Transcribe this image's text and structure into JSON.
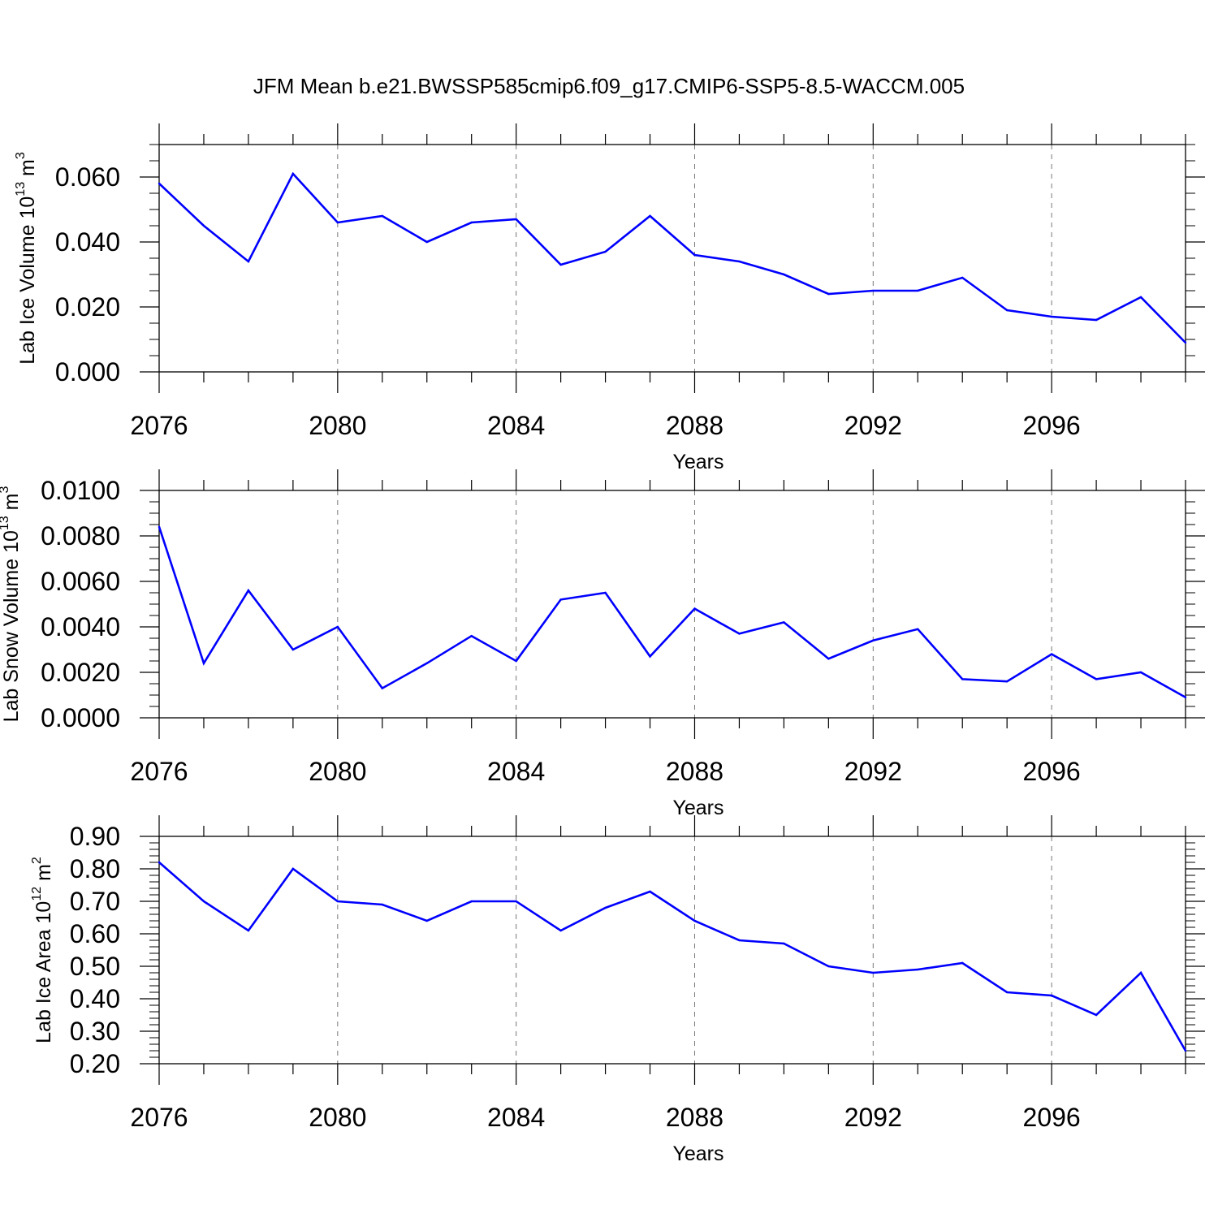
{
  "figure": {
    "title": "JFM Mean b.e21.BWSSP585cmip6.f09_g17.CMIP6-SSP5-8.5-WACCM.005"
  },
  "chart_data": [
    {
      "type": "line",
      "title": "",
      "xlabel": "Years",
      "ylabel": {
        "text": "Lab Ice Volume 10",
        "exp": "13",
        "unit": " m",
        "unit_exp": "3"
      },
      "xlim": [
        2076,
        2099
      ],
      "ylim": [
        0,
        0.07
      ],
      "x_ticks": [
        2076,
        2080,
        2084,
        2088,
        2092,
        2096
      ],
      "x_tick_labels": [
        "2076",
        "2080",
        "2084",
        "2088",
        "2092",
        "2096"
      ],
      "y_ticks": [
        0,
        0.02,
        0.04,
        0.06
      ],
      "y_tick_labels": [
        "0.000",
        "0.020",
        "0.040",
        "0.060"
      ],
      "y_minor_step": 0.005,
      "grid": "vertical dashed at major x ticks",
      "line_color": "#0000ff",
      "x": [
        2076,
        2077,
        2078,
        2079,
        2080,
        2081,
        2082,
        2083,
        2084,
        2085,
        2086,
        2087,
        2088,
        2089,
        2090,
        2091,
        2092,
        2093,
        2094,
        2095,
        2096,
        2097,
        2098,
        2099
      ],
      "values": [
        0.058,
        0.045,
        0.034,
        0.061,
        0.046,
        0.048,
        0.04,
        0.046,
        0.047,
        0.033,
        0.037,
        0.048,
        0.036,
        0.034,
        0.03,
        0.024,
        0.025,
        0.025,
        0.029,
        0.019,
        0.017,
        0.016,
        0.023,
        0.009
      ]
    },
    {
      "type": "line",
      "title": "",
      "xlabel": "Years",
      "ylabel": {
        "text": "Lab Snow Volume 10",
        "exp": "13",
        "unit": " m",
        "unit_exp": "3"
      },
      "xlim": [
        2076,
        2099
      ],
      "ylim": [
        0,
        0.01
      ],
      "x_ticks": [
        2076,
        2080,
        2084,
        2088,
        2092,
        2096
      ],
      "x_tick_labels": [
        "2076",
        "2080",
        "2084",
        "2088",
        "2092",
        "2096"
      ],
      "y_ticks": [
        0,
        0.002,
        0.004,
        0.006,
        0.008,
        0.01
      ],
      "y_tick_labels": [
        "0.0000",
        "0.0020",
        "0.0040",
        "0.0060",
        "0.0080",
        "0.0100"
      ],
      "y_minor_step": 0.0005,
      "grid": "vertical dashed at major x ticks",
      "line_color": "#0000ff",
      "x": [
        2076,
        2077,
        2078,
        2079,
        2080,
        2081,
        2082,
        2083,
        2084,
        2085,
        2086,
        2087,
        2088,
        2089,
        2090,
        2091,
        2092,
        2093,
        2094,
        2095,
        2096,
        2097,
        2098,
        2099
      ],
      "values": [
        0.0084,
        0.0024,
        0.0056,
        0.003,
        0.004,
        0.0013,
        0.0024,
        0.0036,
        0.0025,
        0.0052,
        0.0055,
        0.0027,
        0.0048,
        0.0037,
        0.0042,
        0.0026,
        0.0034,
        0.0039,
        0.0017,
        0.0016,
        0.0028,
        0.0017,
        0.002,
        0.0009
      ]
    },
    {
      "type": "line",
      "title": "",
      "xlabel": "Years",
      "ylabel": {
        "text": "Lab Ice Area 10",
        "exp": "12",
        "unit": " m",
        "unit_exp": "2"
      },
      "xlim": [
        2076,
        2099
      ],
      "ylim": [
        0.2,
        0.9
      ],
      "x_ticks": [
        2076,
        2080,
        2084,
        2088,
        2092,
        2096
      ],
      "x_tick_labels": [
        "2076",
        "2080",
        "2084",
        "2088",
        "2092",
        "2096"
      ],
      "y_ticks": [
        0.2,
        0.3,
        0.4,
        0.5,
        0.6,
        0.7,
        0.8,
        0.9
      ],
      "y_tick_labels": [
        "0.20",
        "0.30",
        "0.40",
        "0.50",
        "0.60",
        "0.70",
        "0.80",
        "0.90"
      ],
      "y_minor_step": 0.02,
      "grid": "vertical dashed at major x ticks",
      "line_color": "#0000ff",
      "x": [
        2076,
        2077,
        2078,
        2079,
        2080,
        2081,
        2082,
        2083,
        2084,
        2085,
        2086,
        2087,
        2088,
        2089,
        2090,
        2091,
        2092,
        2093,
        2094,
        2095,
        2096,
        2097,
        2098,
        2099
      ],
      "values": [
        0.82,
        0.7,
        0.61,
        0.8,
        0.7,
        0.69,
        0.64,
        0.7,
        0.7,
        0.61,
        0.68,
        0.73,
        0.64,
        0.58,
        0.57,
        0.5,
        0.48,
        0.49,
        0.51,
        0.42,
        0.41,
        0.35,
        0.48,
        0.24
      ]
    }
  ]
}
